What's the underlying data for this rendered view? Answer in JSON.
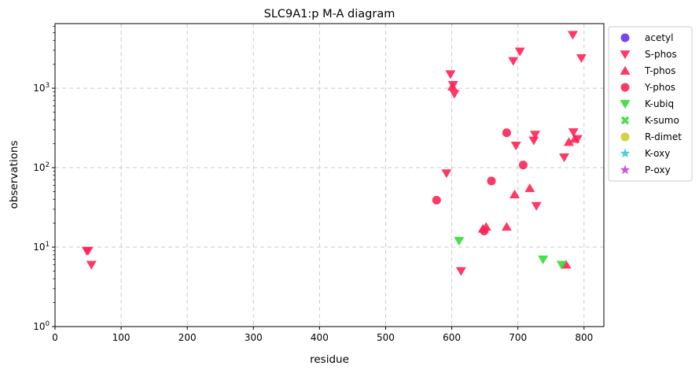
{
  "chart_data": {
    "type": "scatter",
    "title": "SLC9A1:p M-A diagram",
    "xlabel": "residue",
    "ylabel": "observations",
    "xlim": [
      0,
      830
    ],
    "ylim": [
      1,
      6500
    ],
    "yscale": "log",
    "grid": true,
    "legend_position": "outside-right",
    "x_ticks": [
      {
        "v": 0,
        "label": "0"
      },
      {
        "v": 100,
        "label": "100"
      },
      {
        "v": 200,
        "label": "200"
      },
      {
        "v": 300,
        "label": "300"
      },
      {
        "v": 400,
        "label": "400"
      },
      {
        "v": 500,
        "label": "500"
      },
      {
        "v": 600,
        "label": "600"
      },
      {
        "v": 700,
        "label": "700"
      },
      {
        "v": 800,
        "label": "800"
      }
    ],
    "y_ticks": [
      {
        "v": 1,
        "base": "10",
        "exp": "0"
      },
      {
        "v": 10,
        "base": "10",
        "exp": "1"
      },
      {
        "v": 100,
        "base": "10",
        "exp": "2"
      },
      {
        "v": 1000,
        "base": "10",
        "exp": "3"
      }
    ],
    "series": [
      {
        "name": "acetyl",
        "marker": "circle",
        "color": "#6633ee",
        "points": []
      },
      {
        "name": "S-phos",
        "marker": "triangle-down",
        "color": "#ff2255",
        "points": [
          {
            "x": 48,
            "y": 9
          },
          {
            "x": 50,
            "y": 9
          },
          {
            "x": 55,
            "y": 6
          },
          {
            "x": 592,
            "y": 85
          },
          {
            "x": 598,
            "y": 1500
          },
          {
            "x": 602,
            "y": 1100
          },
          {
            "x": 604,
            "y": 850
          },
          {
            "x": 614,
            "y": 5
          },
          {
            "x": 693,
            "y": 2200
          },
          {
            "x": 697,
            "y": 190
          },
          {
            "x": 703,
            "y": 2900
          },
          {
            "x": 724,
            "y": 220
          },
          {
            "x": 726,
            "y": 260
          },
          {
            "x": 728,
            "y": 33
          },
          {
            "x": 770,
            "y": 135
          },
          {
            "x": 783,
            "y": 4700
          },
          {
            "x": 784,
            "y": 280
          },
          {
            "x": 790,
            "y": 230
          },
          {
            "x": 796,
            "y": 2400
          }
        ]
      },
      {
        "name": "T-phos",
        "marker": "triangle-up",
        "color": "#ff2255",
        "points": [
          {
            "x": 601,
            "y": 1050
          },
          {
            "x": 647,
            "y": 17
          },
          {
            "x": 652,
            "y": 18
          },
          {
            "x": 683,
            "y": 18
          },
          {
            "x": 695,
            "y": 46
          },
          {
            "x": 718,
            "y": 55
          },
          {
            "x": 773,
            "y": 6
          },
          {
            "x": 777,
            "y": 210
          },
          {
            "x": 786,
            "y": 230
          }
        ]
      },
      {
        "name": "Y-phos",
        "marker": "circle",
        "color": "#ff2255",
        "points": [
          {
            "x": 577,
            "y": 39
          },
          {
            "x": 649,
            "y": 16
          },
          {
            "x": 660,
            "y": 68
          },
          {
            "x": 683,
            "y": 275
          },
          {
            "x": 708,
            "y": 108
          }
        ]
      },
      {
        "name": "K-ubiq",
        "marker": "triangle-down",
        "color": "#33dd33",
        "points": [
          {
            "x": 611,
            "y": 12
          },
          {
            "x": 738,
            "y": 7
          },
          {
            "x": 766,
            "y": 6
          }
        ]
      },
      {
        "name": "K-sumo",
        "marker": "x",
        "color": "#33dd33",
        "points": []
      },
      {
        "name": "R-dimet",
        "marker": "circle",
        "color": "#cccc33",
        "points": []
      },
      {
        "name": "K-oxy",
        "marker": "star",
        "color": "#33cccc",
        "points": []
      },
      {
        "name": "P-oxy",
        "marker": "star",
        "color": "#cc44cc",
        "points": []
      }
    ]
  }
}
